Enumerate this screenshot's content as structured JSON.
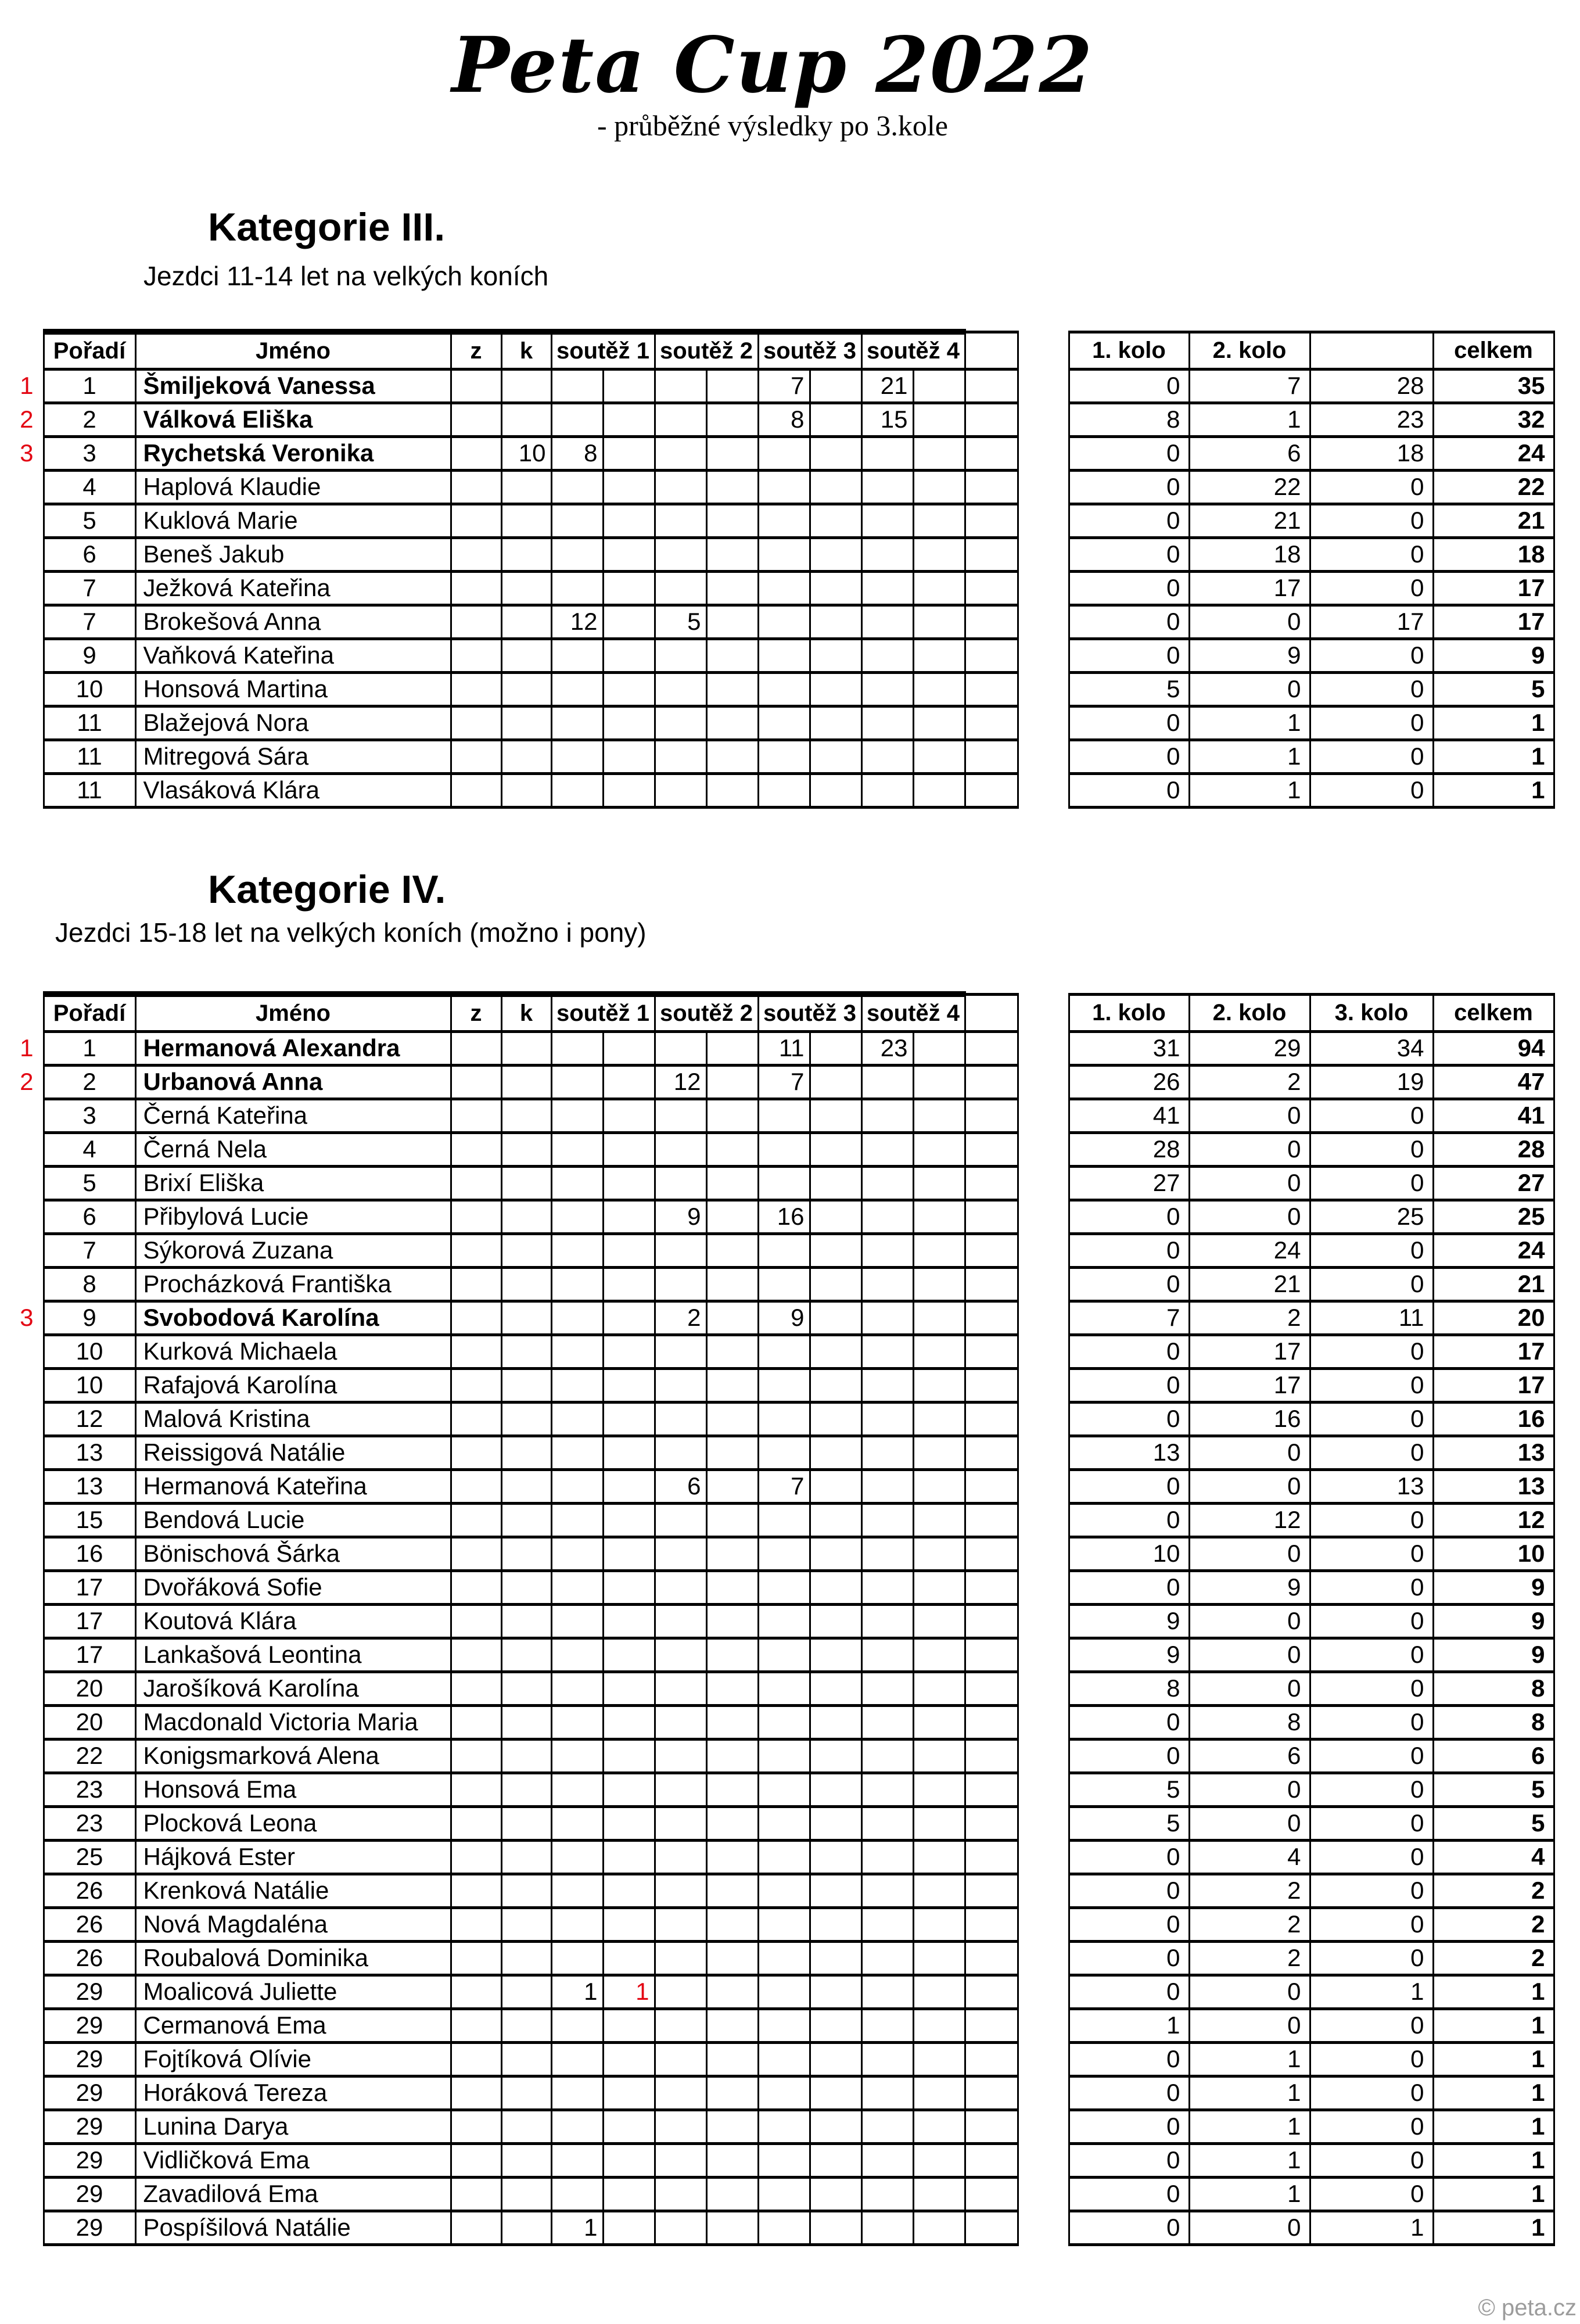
{
  "page": {
    "title": "Peta Cup 2022",
    "subtitle": "- průběžné výsledky po 3.kole",
    "copyright": "© peta.cz",
    "accent_red": "#e30613"
  },
  "columns": {
    "poradi": "Pořadí",
    "jmeno": "Jméno",
    "z": "z",
    "k": "k",
    "soutez1": "soutěž 1",
    "soutez2": "soutěž 2",
    "soutez3": "soutěž 3",
    "soutez4": "soutěž 4",
    "kolo1": "1. kolo",
    "kolo2": "2. kolo",
    "celkem": "celkem"
  },
  "kategorie_iii": {
    "heading": "Kategorie III.",
    "subheading": "Jezdci 11-14 let na velkých koních",
    "kolo3_header": "",
    "rows": [
      {
        "marker": "1",
        "bold": true,
        "poradi": "1",
        "jmeno": "Šmiljeková Vanessa",
        "s3a": "7",
        "s4a": "21",
        "kolo1": "0",
        "kolo2": "7",
        "kolo3": "28",
        "celkem": "35"
      },
      {
        "marker": "2",
        "bold": true,
        "poradi": "2",
        "jmeno": "Válková Eliška",
        "s3a": "8",
        "s4a": "15",
        "kolo1": "8",
        "kolo2": "1",
        "kolo3": "23",
        "celkem": "32"
      },
      {
        "marker": "3",
        "bold": true,
        "poradi": "3",
        "jmeno": "Rychetská Veronika",
        "k": "10",
        "s1a": "8",
        "kolo1": "0",
        "kolo2": "6",
        "kolo3": "18",
        "celkem": "24"
      },
      {
        "poradi": "4",
        "jmeno": "Haplová Klaudie",
        "kolo1": "0",
        "kolo2": "22",
        "kolo3": "0",
        "celkem": "22"
      },
      {
        "poradi": "5",
        "jmeno": "Kuklová Marie",
        "kolo1": "0",
        "kolo2": "21",
        "kolo3": "0",
        "celkem": "21"
      },
      {
        "poradi": "6",
        "jmeno": "Beneš Jakub",
        "kolo1": "0",
        "kolo2": "18",
        "kolo3": "0",
        "celkem": "18"
      },
      {
        "poradi": "7",
        "jmeno": "Ježková Kateřina",
        "kolo1": "0",
        "kolo2": "17",
        "kolo3": "0",
        "celkem": "17"
      },
      {
        "poradi": "7",
        "jmeno": "Brokešová Anna",
        "s1a": "12",
        "s2a": "5",
        "kolo1": "0",
        "kolo2": "0",
        "kolo3": "17",
        "celkem": "17"
      },
      {
        "poradi": "9",
        "jmeno": "Vaňková Kateřina",
        "kolo1": "0",
        "kolo2": "9",
        "kolo3": "0",
        "celkem": "9"
      },
      {
        "poradi": "10",
        "jmeno": "Honsová Martina",
        "kolo1": "5",
        "kolo2": "0",
        "kolo3": "0",
        "celkem": "5"
      },
      {
        "poradi": "11",
        "jmeno": "Blažejová Nora",
        "kolo1": "0",
        "kolo2": "1",
        "kolo3": "0",
        "celkem": "1"
      },
      {
        "poradi": "11",
        "jmeno": "Mitregová Sára",
        "kolo1": "0",
        "kolo2": "1",
        "kolo3": "0",
        "celkem": "1"
      },
      {
        "poradi": "11",
        "jmeno": "Vlasáková Klára",
        "kolo1": "0",
        "kolo2": "1",
        "kolo3": "0",
        "celkem": "1"
      }
    ]
  },
  "kategorie_iv": {
    "heading": "Kategorie IV.",
    "subheading": "Jezdci 15-18 let na velkých koních (možno i pony)",
    "kolo3_header": "3. kolo",
    "rows": [
      {
        "marker": "1",
        "bold": true,
        "poradi": "1",
        "jmeno": "Hermanová Alexandra",
        "s3a": "11",
        "s4a": "23",
        "kolo1": "31",
        "kolo2": "29",
        "kolo3": "34",
        "celkem": "94"
      },
      {
        "marker": "2",
        "bold": true,
        "poradi": "2",
        "jmeno": "Urbanová Anna",
        "s2a": "12",
        "s3a": "7",
        "kolo1": "26",
        "kolo2": "2",
        "kolo3": "19",
        "celkem": "47"
      },
      {
        "poradi": "3",
        "jmeno": "Černá Kateřina",
        "kolo1": "41",
        "kolo2": "0",
        "kolo3": "0",
        "celkem": "41"
      },
      {
        "poradi": "4",
        "jmeno": "Černá Nela",
        "kolo1": "28",
        "kolo2": "0",
        "kolo3": "0",
        "celkem": "28"
      },
      {
        "poradi": "5",
        "jmeno": "Brixí Eliška",
        "kolo1": "27",
        "kolo2": "0",
        "kolo3": "0",
        "celkem": "27"
      },
      {
        "poradi": "6",
        "jmeno": "Přibylová Lucie",
        "s2a": "9",
        "s3a": "16",
        "kolo1": "0",
        "kolo2": "0",
        "kolo3": "25",
        "celkem": "25"
      },
      {
        "poradi": "7",
        "jmeno": "Sýkorová Zuzana",
        "kolo1": "0",
        "kolo2": "24",
        "kolo3": "0",
        "celkem": "24"
      },
      {
        "poradi": "8",
        "jmeno": "Procházková Františka",
        "kolo1": "0",
        "kolo2": "21",
        "kolo3": "0",
        "celkem": "21"
      },
      {
        "marker": "3",
        "bold": true,
        "poradi": "9",
        "jmeno": "Svobodová Karolína",
        "s2a": "2",
        "s3a": "9",
        "kolo1": "7",
        "kolo2": "2",
        "kolo3": "11",
        "celkem": "20"
      },
      {
        "poradi": "10",
        "jmeno": "Kurková Michaela",
        "kolo1": "0",
        "kolo2": "17",
        "kolo3": "0",
        "celkem": "17"
      },
      {
        "poradi": "10",
        "jmeno": "Rafajová Karolína",
        "kolo1": "0",
        "kolo2": "17",
        "kolo3": "0",
        "celkem": "17"
      },
      {
        "poradi": "12",
        "jmeno": "Malová Kristina",
        "kolo1": "0",
        "kolo2": "16",
        "kolo3": "0",
        "celkem": "16"
      },
      {
        "poradi": "13",
        "jmeno": "Reissigová Natálie",
        "kolo1": "13",
        "kolo2": "0",
        "kolo3": "0",
        "celkem": "13"
      },
      {
        "poradi": "13",
        "jmeno": "Hermanová Kateřina",
        "s2a": "6",
        "s3a": "7",
        "kolo1": "0",
        "kolo2": "0",
        "kolo3": "13",
        "celkem": "13"
      },
      {
        "poradi": "15",
        "jmeno": "Bendová Lucie",
        "kolo1": "0",
        "kolo2": "12",
        "kolo3": "0",
        "celkem": "12"
      },
      {
        "poradi": "16",
        "jmeno": "Bönischová Šárka",
        "kolo1": "10",
        "kolo2": "0",
        "kolo3": "0",
        "celkem": "10"
      },
      {
        "poradi": "17",
        "jmeno": "Dvořáková Sofie",
        "kolo1": "0",
        "kolo2": "9",
        "kolo3": "0",
        "celkem": "9"
      },
      {
        "poradi": "17",
        "jmeno": "Koutová Klára",
        "kolo1": "9",
        "kolo2": "0",
        "kolo3": "0",
        "celkem": "9"
      },
      {
        "poradi": "17",
        "jmeno": "Lankašová Leontina",
        "kolo1": "9",
        "kolo2": "0",
        "kolo3": "0",
        "celkem": "9"
      },
      {
        "poradi": "20",
        "jmeno": "Jarošíková Karolína",
        "kolo1": "8",
        "kolo2": "0",
        "kolo3": "0",
        "celkem": "8"
      },
      {
        "poradi": "20",
        "jmeno": "Macdonald Victoria Maria",
        "kolo1": "0",
        "kolo2": "8",
        "kolo3": "0",
        "celkem": "8"
      },
      {
        "poradi": "22",
        "jmeno": "Konigsmarková Alena",
        "kolo1": "0",
        "kolo2": "6",
        "kolo3": "0",
        "celkem": "6"
      },
      {
        "poradi": "23",
        "jmeno": "Honsová Ema",
        "kolo1": "5",
        "kolo2": "0",
        "kolo3": "0",
        "celkem": "5"
      },
      {
        "poradi": "23",
        "jmeno": "Plocková Leona",
        "kolo1": "5",
        "kolo2": "0",
        "kolo3": "0",
        "celkem": "5"
      },
      {
        "poradi": "25",
        "jmeno": "Hájková Ester",
        "kolo1": "0",
        "kolo2": "4",
        "kolo3": "0",
        "celkem": "4"
      },
      {
        "poradi": "26",
        "jmeno": "Krenková Natálie",
        "kolo1": "0",
        "kolo2": "2",
        "kolo3": "0",
        "celkem": "2"
      },
      {
        "poradi": "26",
        "jmeno": "Nová Magdaléna",
        "kolo1": "0",
        "kolo2": "2",
        "kolo3": "0",
        "celkem": "2"
      },
      {
        "poradi": "26",
        "jmeno": "Roubalová Dominika",
        "kolo1": "0",
        "kolo2": "2",
        "kolo3": "0",
        "celkem": "2"
      },
      {
        "poradi": "29",
        "jmeno": "Moalicová Juliette",
        "s1a": "1",
        "s1b": "1",
        "red": [
          "s1b"
        ],
        "kolo1": "0",
        "kolo2": "0",
        "kolo3": "1",
        "celkem": "1"
      },
      {
        "poradi": "29",
        "jmeno": "Cermanová Ema",
        "kolo1": "1",
        "kolo2": "0",
        "kolo3": "0",
        "celkem": "1"
      },
      {
        "poradi": "29",
        "jmeno": "Fojtíková Olívie",
        "kolo1": "0",
        "kolo2": "1",
        "kolo3": "0",
        "celkem": "1"
      },
      {
        "poradi": "29",
        "jmeno": "Horáková Tereza",
        "kolo1": "0",
        "kolo2": "1",
        "kolo3": "0",
        "celkem": "1"
      },
      {
        "poradi": "29",
        "jmeno": "Lunina Darya",
        "kolo1": "0",
        "kolo2": "1",
        "kolo3": "0",
        "celkem": "1"
      },
      {
        "poradi": "29",
        "jmeno": "Vidličková Ema",
        "kolo1": "0",
        "kolo2": "1",
        "kolo3": "0",
        "celkem": "1"
      },
      {
        "poradi": "29",
        "jmeno": "Zavadilová Ema",
        "kolo1": "0",
        "kolo2": "1",
        "kolo3": "0",
        "celkem": "1"
      },
      {
        "poradi": "29",
        "jmeno": "Pospíšilová Natálie",
        "s1a": "1",
        "kolo1": "0",
        "kolo2": "0",
        "kolo3": "1",
        "celkem": "1"
      }
    ]
  }
}
